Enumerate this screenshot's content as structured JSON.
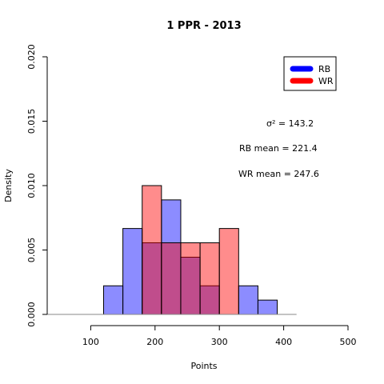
{
  "chart_data": {
    "type": "histogram",
    "title": "1 PPR -  2013",
    "xlabel": "Points",
    "ylabel": "Density",
    "xlim": [
      0,
      500
    ],
    "ylim": [
      0,
      0.02
    ],
    "x_ticks": [
      100,
      200,
      300,
      400,
      500
    ],
    "y_ticks": [
      "0.000",
      "0.005",
      "0.010",
      "0.015",
      "0.020"
    ],
    "grid": false,
    "legend_position": "top-right",
    "colors": {
      "RB": "#0000ff",
      "WR": "#ff0000",
      "RB_fill": "rgba(0,0,255,0.45)",
      "WR_fill": "rgba(255,0,0,0.45)"
    },
    "series": [
      {
        "name": "RB",
        "bins": [
          {
            "x0": 120,
            "x1": 150,
            "density": 0.00222
          },
          {
            "x0": 150,
            "x1": 180,
            "density": 0.00667
          },
          {
            "x0": 180,
            "x1": 210,
            "density": 0.00556
          },
          {
            "x0": 210,
            "x1": 240,
            "density": 0.00889
          },
          {
            "x0": 240,
            "x1": 270,
            "density": 0.00444
          },
          {
            "x0": 270,
            "x1": 300,
            "density": 0.00222
          },
          {
            "x0": 300,
            "x1": 330,
            "density": 0.0
          },
          {
            "x0": 330,
            "x1": 360,
            "density": 0.00222
          },
          {
            "x0": 360,
            "x1": 390,
            "density": 0.00111
          }
        ]
      },
      {
        "name": "WR",
        "bins": [
          {
            "x0": 180,
            "x1": 210,
            "density": 0.01
          },
          {
            "x0": 210,
            "x1": 240,
            "density": 0.00556
          },
          {
            "x0": 240,
            "x1": 270,
            "density": 0.00556
          },
          {
            "x0": 270,
            "x1": 300,
            "density": 0.00556
          },
          {
            "x0": 300,
            "x1": 330,
            "density": 0.00667
          }
        ]
      }
    ],
    "baseline": [
      30,
      420
    ],
    "annotations": {
      "sigma": "σ² =  143.2",
      "rb_mean": "RB mean = 221.4",
      "wr_mean": "WR mean = 247.6"
    }
  }
}
